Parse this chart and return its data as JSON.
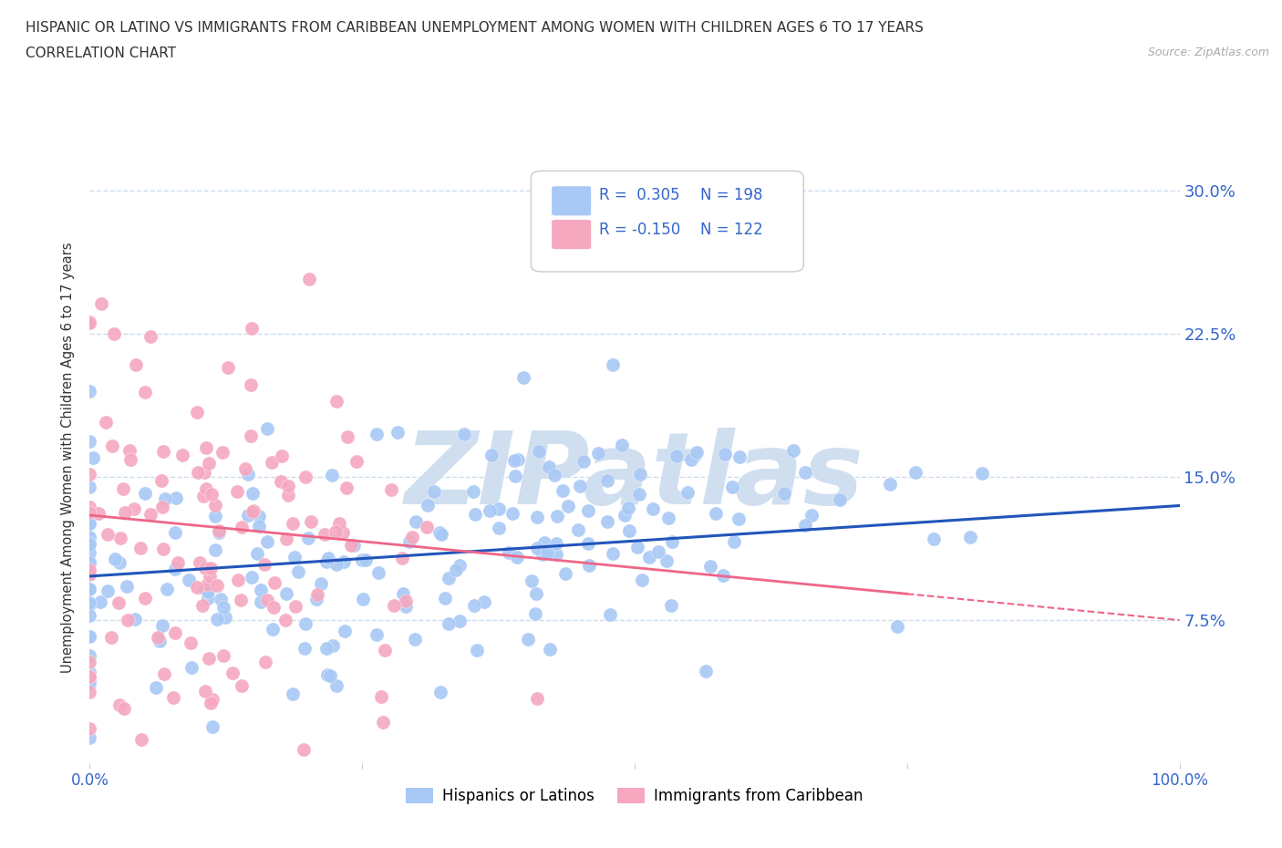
{
  "title_line1": "HISPANIC OR LATINO VS IMMIGRANTS FROM CARIBBEAN UNEMPLOYMENT AMONG WOMEN WITH CHILDREN AGES 6 TO 17 YEARS",
  "title_line2": "CORRELATION CHART",
  "source": "Source: ZipAtlas.com",
  "ylabel": "Unemployment Among Women with Children Ages 6 to 17 years",
  "xlim": [
    0,
    1.0
  ],
  "ylim": [
    0,
    0.32
  ],
  "ytick_positions": [
    0.075,
    0.15,
    0.225,
    0.3
  ],
  "ytick_labels": [
    "7.5%",
    "15.0%",
    "22.5%",
    "30.0%"
  ],
  "blue_R": 0.305,
  "blue_N": 198,
  "pink_R": -0.15,
  "pink_N": 122,
  "blue_color": "#a8c8f5",
  "pink_color": "#f5a8c0",
  "blue_line_color": "#2255bb",
  "pink_line_color": "#ee6688",
  "legend_R_color": "#3366cc",
  "watermark_color": "#d0dff0",
  "watermark_text": "ZIPatlas",
  "background_color": "#ffffff",
  "grid_color": "#ccddee",
  "title_color": "#333333",
  "axis_label_color": "#333333",
  "tick_label_color": "#3366cc",
  "blue_line_y0": 0.098,
  "blue_line_y1": 0.135,
  "pink_line_y0": 0.13,
  "pink_line_y1": 0.075,
  "seed_blue": 42,
  "seed_pink": 77
}
